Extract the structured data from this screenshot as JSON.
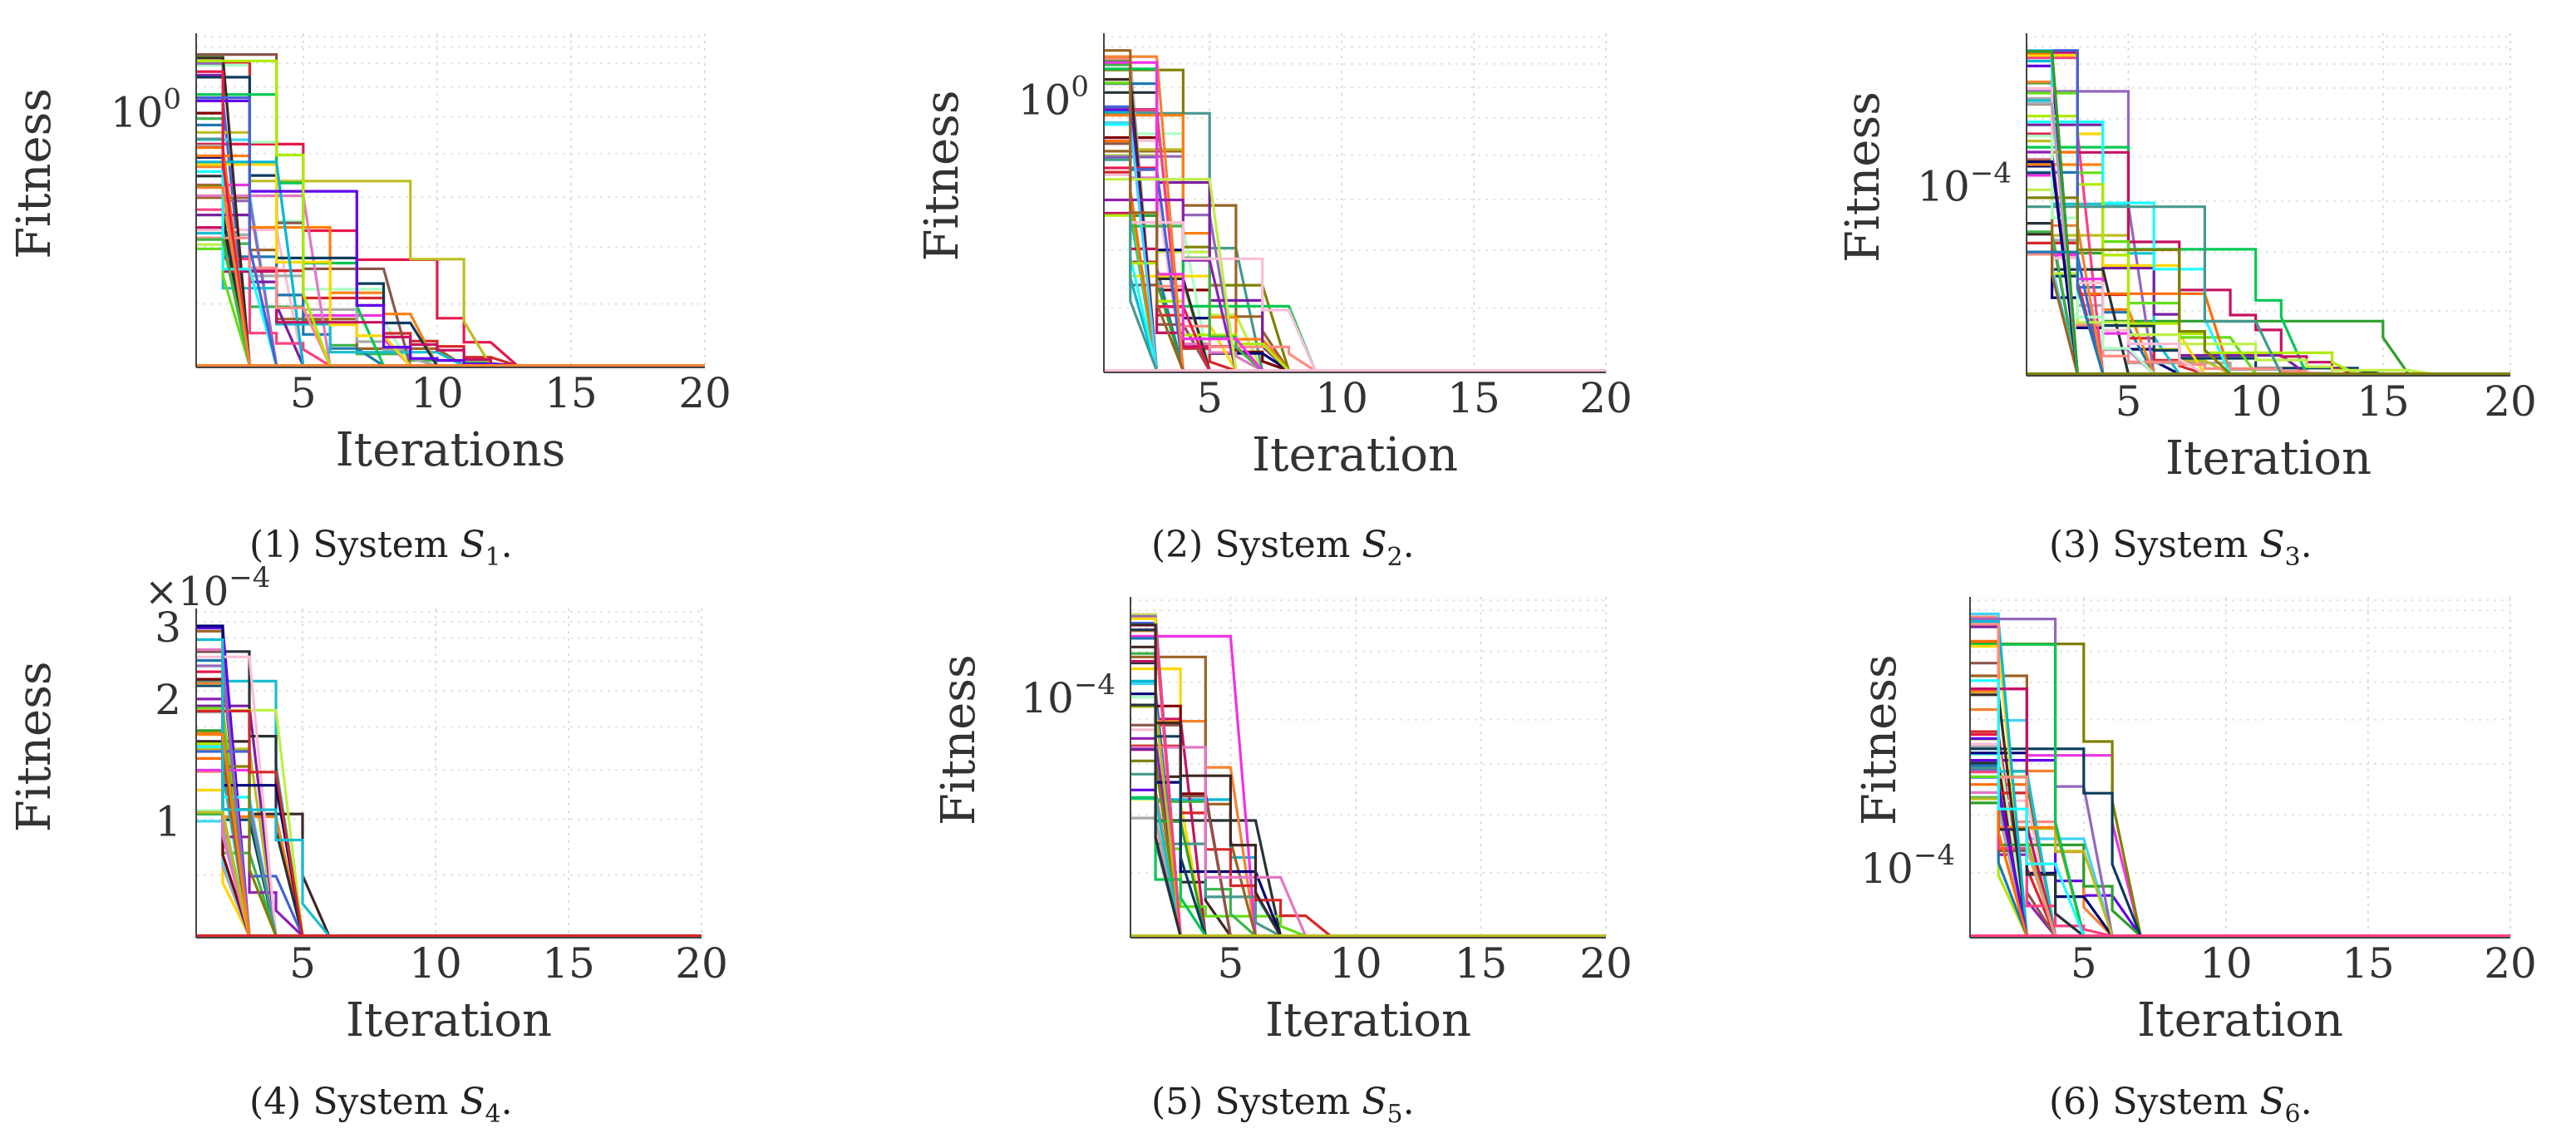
{
  "chart_data": [
    {
      "panel": "(1)",
      "type": "line",
      "caption": {
        "prefix": "(1) System ",
        "var": "S",
        "sub": "1",
        "suffix": "."
      },
      "xlabel": "Iterations",
      "ylabel": "Fitness",
      "xlim": [
        1,
        20
      ],
      "xticks": [
        5,
        10,
        15,
        20
      ],
      "yscale": "log",
      "yticks": [
        {
          "label": "10",
          "sup": "0"
        }
      ],
      "grid": true,
      "series_summary": "many overlapping runs (≈50), all converge to a minimum by about iteration 13",
      "converged_by": 13
    },
    {
      "panel": "(2)",
      "type": "line",
      "caption": {
        "prefix": "(2) System ",
        "var": "S",
        "sub": "2",
        "suffix": "."
      },
      "xlabel": "Iteration",
      "ylabel": "Fitness",
      "xlim": [
        1,
        20
      ],
      "xticks": [
        5,
        10,
        15,
        20
      ],
      "yscale": "log",
      "yticks": [
        {
          "label": "10",
          "sup": "0"
        }
      ],
      "grid": true,
      "converged_by": 9
    },
    {
      "panel": "(3)",
      "type": "line",
      "caption": {
        "prefix": "(3) System ",
        "var": "S",
        "sub": "3",
        "suffix": "."
      },
      "xlabel": "Iteration",
      "ylabel": "Fitness",
      "xlim": [
        1,
        20
      ],
      "xticks": [
        5,
        10,
        15,
        20
      ],
      "yscale": "log",
      "yticks": [
        {
          "label": "10",
          "sup": "−4"
        }
      ],
      "grid": true,
      "converged_by": 17
    },
    {
      "panel": "(4)",
      "type": "line",
      "caption": {
        "prefix": "(4) System ",
        "var": "S",
        "sub": "4",
        "suffix": "."
      },
      "xlabel": "Iteration",
      "ylabel": "Fitness",
      "xlim": [
        1,
        20
      ],
      "xticks": [
        5,
        10,
        15,
        20
      ],
      "yscale": "log",
      "exponent_label": {
        "label": "×10",
        "sup": "−4"
      },
      "yticks": [
        {
          "label": "3"
        },
        {
          "label": "2"
        },
        {
          "label": "1"
        }
      ],
      "grid": true,
      "converged_by": 6
    },
    {
      "panel": "(5)",
      "type": "line",
      "caption": {
        "prefix": "(5) System ",
        "var": "S",
        "sub": "5",
        "suffix": "."
      },
      "xlabel": "Iteration",
      "ylabel": "Fitness",
      "xlim": [
        1,
        20
      ],
      "xticks": [
        5,
        10,
        15,
        20
      ],
      "yscale": "log",
      "yticks": [
        {
          "label": "10",
          "sup": "−4"
        }
      ],
      "grid": true,
      "converged_by": 9
    },
    {
      "panel": "(6)",
      "type": "line",
      "caption": {
        "prefix": "(6) System ",
        "var": "S",
        "sub": "6",
        "suffix": "."
      },
      "xlabel": "Iteration",
      "ylabel": "Fitness",
      "xlim": [
        1,
        20
      ],
      "xticks": [
        5,
        10,
        15,
        20
      ],
      "yscale": "log",
      "yticks": [
        {
          "label": "10",
          "sup": "−4"
        }
      ],
      "grid": true,
      "converged_by": 7
    }
  ],
  "palette": [
    "#e6194b",
    "#3cb44b",
    "#4363d8",
    "#f58231",
    "#911eb4",
    "#42d4f4",
    "#f032e6",
    "#bfef45",
    "#fabed4",
    "#469990",
    "#9a6324",
    "#800000",
    "#aaffc3",
    "#808000",
    "#000075",
    "#a9a9a9",
    "#1f77b4",
    "#2ca02c",
    "#d62728",
    "#9467bd",
    "#8c564b",
    "#e377c2",
    "#17becf",
    "#bcbd22",
    "#ff7f0e",
    "#0b3d5c",
    "#7a1fa2",
    "#00c853",
    "#ff4081",
    "#ffd600",
    "#3e2723",
    "#263238",
    "#00b8d4",
    "#c51162",
    "#64dd17",
    "#6200ea",
    "#ff6d00",
    "#ff8a80",
    "#18ffff",
    "#aeea00"
  ]
}
